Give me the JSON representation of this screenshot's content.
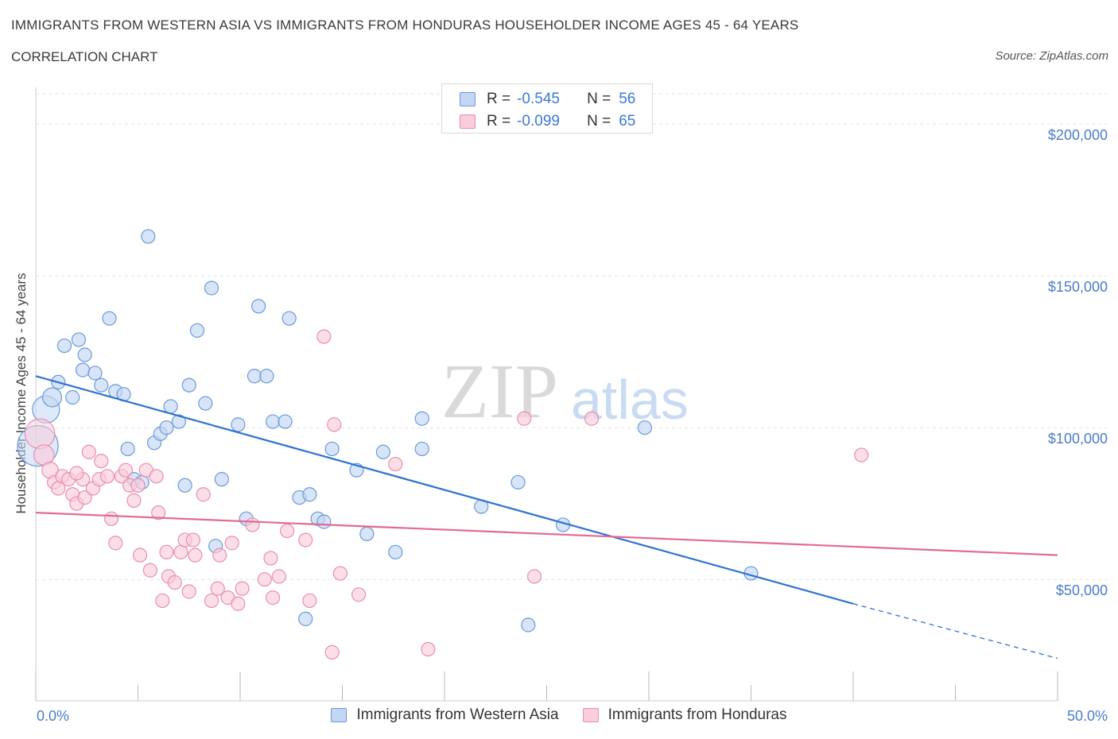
{
  "header": {
    "title": "IMMIGRANTS FROM WESTERN ASIA VS IMMIGRANTS FROM HONDURAS HOUSEHOLDER INCOME AGES 45 - 64 YEARS",
    "subtitle": "CORRELATION CHART",
    "source": "Source: ZipAtlas.com"
  },
  "stats": {
    "western_asia": {
      "r_label": "R =",
      "r_value": "-0.545",
      "n_label": "N =",
      "n_value": "56"
    },
    "honduras": {
      "r_label": "R =",
      "r_value": "-0.099",
      "n_label": "N =",
      "n_value": "65"
    }
  },
  "legend": {
    "western_asia": "Immigrants from Western Asia",
    "honduras": "Immigrants from Honduras"
  },
  "watermark": {
    "zip": "ZIP",
    "atlas": "atlas"
  },
  "colors": {
    "western_asia_fill": "#c3d7f4",
    "western_asia_stroke": "#6a9ad9",
    "western_asia_line": "#2f72d0",
    "honduras_fill": "#f9cddb",
    "honduras_stroke": "#e98fac",
    "honduras_line": "#e36a93",
    "tick_text": "#4a7cc9"
  },
  "chart_data": {
    "type": "scatter",
    "title": "IMMIGRANTS FROM WESTERN ASIA VS IMMIGRANTS FROM HONDURAS HOUSEHOLDER INCOME AGES 45 - 64 YEARS",
    "xlabel": "",
    "ylabel": "Householder Income Ages 45 - 64 years",
    "xlim": [
      0,
      50
    ],
    "ylim": [
      10000,
      210000
    ],
    "x_tick_labels": [
      "0.0%",
      "50.0%"
    ],
    "y_ticks": [
      50000,
      100000,
      150000,
      200000
    ],
    "y_tick_labels": [
      "$50,000",
      "$100,000",
      "$150,000",
      "$200,000"
    ],
    "grid": true,
    "legend_position": "bottom-center",
    "series": [
      {
        "name": "Immigrants from Western Asia",
        "r": -0.545,
        "n": 56,
        "trend": {
          "x0": 0,
          "y0": 117000,
          "x1": 40,
          "y1": 42000,
          "dashed_to_x": 50,
          "dashed_to_y": 24000
        },
        "points": [
          [
            0.1,
            94000,
            3
          ],
          [
            0.5,
            106000,
            2
          ],
          [
            0.8,
            110000,
            1.4
          ],
          [
            1.1,
            115000,
            1
          ],
          [
            1.4,
            127000,
            1
          ],
          [
            1.8,
            110000,
            1
          ],
          [
            2.1,
            129000,
            1
          ],
          [
            2.4,
            124000,
            1
          ],
          [
            2.3,
            119000,
            1
          ],
          [
            2.9,
            118000,
            1
          ],
          [
            3.2,
            114000,
            1
          ],
          [
            3.6,
            136000,
            1
          ],
          [
            3.9,
            112000,
            1
          ],
          [
            4.3,
            111000,
            1
          ],
          [
            4.5,
            93000,
            1
          ],
          [
            4.8,
            83000,
            1
          ],
          [
            5.2,
            82000,
            1
          ],
          [
            5.5,
            163000,
            1
          ],
          [
            5.8,
            95000,
            1
          ],
          [
            6.1,
            98000,
            1
          ],
          [
            6.4,
            100000,
            1
          ],
          [
            6.6,
            107000,
            1
          ],
          [
            7.0,
            102000,
            1
          ],
          [
            7.3,
            81000,
            1
          ],
          [
            7.5,
            114000,
            1
          ],
          [
            7.9,
            132000,
            1
          ],
          [
            8.3,
            108000,
            1
          ],
          [
            8.6,
            146000,
            1
          ],
          [
            8.8,
            61000,
            1
          ],
          [
            9.1,
            83000,
            1
          ],
          [
            9.9,
            101000,
            1
          ],
          [
            10.3,
            70000,
            1
          ],
          [
            10.7,
            117000,
            1
          ],
          [
            10.9,
            140000,
            1
          ],
          [
            11.3,
            117000,
            1
          ],
          [
            11.6,
            102000,
            1
          ],
          [
            12.2,
            102000,
            1
          ],
          [
            12.4,
            136000,
            1
          ],
          [
            12.9,
            77000,
            1
          ],
          [
            13.2,
            37000,
            1
          ],
          [
            13.4,
            78000,
            1
          ],
          [
            13.8,
            70000,
            1
          ],
          [
            14.1,
            69000,
            1
          ],
          [
            14.5,
            93000,
            1
          ],
          [
            15.7,
            86000,
            1
          ],
          [
            16.2,
            65000,
            1
          ],
          [
            17.0,
            92000,
            1
          ],
          [
            17.6,
            59000,
            1
          ],
          [
            18.9,
            103000,
            1
          ],
          [
            18.9,
            93000,
            1
          ],
          [
            21.8,
            74000,
            1
          ],
          [
            23.6,
            82000,
            1
          ],
          [
            24.1,
            35000,
            1
          ],
          [
            25.8,
            68000,
            1
          ],
          [
            29.8,
            100000,
            1
          ],
          [
            35.0,
            52000,
            1
          ]
        ]
      },
      {
        "name": "Immigrants from Honduras",
        "r": -0.099,
        "n": 65,
        "trend": {
          "x0": 0,
          "y0": 72000,
          "x1": 50,
          "y1": 58000
        },
        "points": [
          [
            0.2,
            98000,
            2.2
          ],
          [
            0.4,
            91000,
            1.5
          ],
          [
            0.7,
            86000,
            1.2
          ],
          [
            0.9,
            82000,
            1
          ],
          [
            1.1,
            80000,
            1
          ],
          [
            1.3,
            84000,
            1
          ],
          [
            1.6,
            83000,
            1
          ],
          [
            1.8,
            78000,
            1
          ],
          [
            2.0,
            75000,
            1
          ],
          [
            2.3,
            83000,
            1
          ],
          [
            2.4,
            77000,
            1
          ],
          [
            2.6,
            92000,
            1
          ],
          [
            2.8,
            80000,
            1
          ],
          [
            3.1,
            83000,
            1
          ],
          [
            3.2,
            89000,
            1
          ],
          [
            3.5,
            84000,
            1
          ],
          [
            3.7,
            70000,
            1
          ],
          [
            3.9,
            62000,
            1
          ],
          [
            4.2,
            84000,
            1
          ],
          [
            4.4,
            86000,
            1
          ],
          [
            4.6,
            81000,
            1
          ],
          [
            4.8,
            76000,
            1
          ],
          [
            5.0,
            81000,
            1
          ],
          [
            5.1,
            58000,
            1
          ],
          [
            5.4,
            86000,
            1
          ],
          [
            5.6,
            53000,
            1
          ],
          [
            5.9,
            84000,
            1
          ],
          [
            6.0,
            72000,
            1
          ],
          [
            6.2,
            43000,
            1
          ],
          [
            6.4,
            59000,
            1
          ],
          [
            6.5,
            51000,
            1
          ],
          [
            6.8,
            49000,
            1
          ],
          [
            7.1,
            59000,
            1
          ],
          [
            7.3,
            63000,
            1
          ],
          [
            7.5,
            46000,
            1
          ],
          [
            7.7,
            63000,
            1
          ],
          [
            7.8,
            58000,
            1
          ],
          [
            8.2,
            78000,
            1
          ],
          [
            8.6,
            43000,
            1
          ],
          [
            8.9,
            47000,
            1
          ],
          [
            9.0,
            58000,
            1
          ],
          [
            9.4,
            44000,
            1
          ],
          [
            9.6,
            62000,
            1
          ],
          [
            9.9,
            42000,
            1
          ],
          [
            10.1,
            47000,
            1
          ],
          [
            10.6,
            68000,
            1
          ],
          [
            11.2,
            50000,
            1
          ],
          [
            11.5,
            57000,
            1
          ],
          [
            11.6,
            44000,
            1
          ],
          [
            11.9,
            51000,
            1
          ],
          [
            12.3,
            66000,
            1
          ],
          [
            13.2,
            63000,
            1
          ],
          [
            13.4,
            43000,
            1
          ],
          [
            14.1,
            130000,
            1
          ],
          [
            14.5,
            26000,
            1
          ],
          [
            14.6,
            101000,
            1
          ],
          [
            14.9,
            52000,
            1
          ],
          [
            15.8,
            45000,
            1
          ],
          [
            17.6,
            88000,
            1
          ],
          [
            19.2,
            27000,
            1
          ],
          [
            23.9,
            103000,
            1
          ],
          [
            24.4,
            51000,
            1
          ],
          [
            27.2,
            103000,
            1
          ],
          [
            40.4,
            91000,
            1
          ],
          [
            2.0,
            85000,
            1
          ]
        ]
      }
    ]
  }
}
